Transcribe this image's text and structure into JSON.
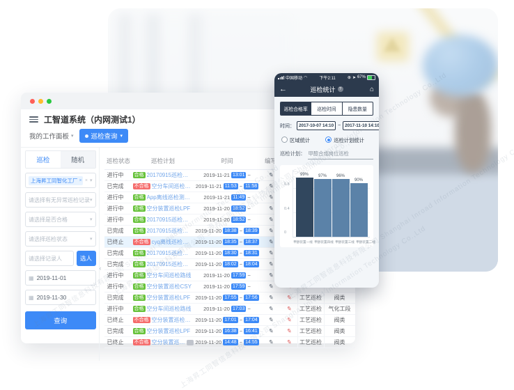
{
  "watermark": {
    "text": "上海昇工同智信息科技有限公司 Shanghai Inroad Information Technology Co.,Ltd"
  },
  "colors": {
    "accent": "#3d8af7",
    "ok": "#67c23a",
    "bad": "#f56c6c",
    "time_badge": "#3d8af7",
    "phone_dark": "#2c3a4d",
    "bar_main": "#31475e",
    "bar_rest": "#5b82a8"
  },
  "desktop": {
    "title": "工智道系统（内网测试1）",
    "workspace_tab": "我的工作面板",
    "active_tab": "巡检查询",
    "sidebar": {
      "tabs": [
        {
          "label": "巡检"
        },
        {
          "label": "随机"
        }
      ],
      "factory_tag": "上海昇工同智化工厂",
      "filters": [
        "请选择有无异常巡检记录",
        "请选择是否合格",
        "请选择巡检状态"
      ],
      "person_placeholder": "请选择记录人",
      "pick_person_button": "选人",
      "date_from": "2019-11-01",
      "date_to": "2019-11-30",
      "query_button": "查询"
    },
    "table": {
      "headers": [
        "巡检状态",
        "巡检计划",
        "时间",
        "编写"
      ],
      "rows": [
        {
          "status": "进行中",
          "result": "合格",
          "plan": "20170915巡检测试",
          "date": "2019-11-21",
          "start": "13:01",
          "end": "",
          "type": "",
          "area": "",
          "selected": false,
          "chip": false
        },
        {
          "status": "已完成",
          "result": "不合格",
          "plan": "空分车间巡检路线",
          "date": "2019-11-21",
          "start": "11:53",
          "end": "11:58",
          "type": "",
          "area": "",
          "selected": false,
          "chip": false
        },
        {
          "status": "进行中",
          "result": "合格",
          "plan": "App离线巡检测试计划",
          "date": "2019-11-21",
          "start": "11:49",
          "end": "",
          "type": "",
          "area": "",
          "selected": false,
          "chip": false
        },
        {
          "status": "进行中",
          "result": "合格",
          "plan": "空分装置巡检LPF",
          "date": "2019-11-20",
          "start": "18:52",
          "end": "",
          "type": "",
          "area": "",
          "selected": false,
          "chip": false
        },
        {
          "status": "进行中",
          "result": "合格",
          "plan": "20170915巡检测试",
          "date": "2019-11-20",
          "start": "18:52",
          "end": "",
          "type": "",
          "area": "",
          "selected": false,
          "chip": false
        },
        {
          "status": "已完成",
          "result": "合格",
          "plan": "20170915巡检测试",
          "date": "2019-11-20",
          "start": "18:38",
          "end": "18:39",
          "type": "",
          "area": "",
          "selected": false,
          "chip": false
        },
        {
          "status": "已终止",
          "result": "不合格",
          "plan": "cyq离线巡检测试计划",
          "date": "2019-11-20",
          "start": "18:35",
          "end": "18:37",
          "type": "",
          "area": "",
          "selected": true,
          "chip": false
        },
        {
          "status": "已完成",
          "result": "合格",
          "plan": "20170915巡检测试",
          "date": "2019-11-20",
          "start": "18:30",
          "end": "18:31",
          "type": "",
          "area": "",
          "selected": false,
          "chip": false
        },
        {
          "status": "已完成",
          "result": "合格",
          "plan": "20170915巡检测试",
          "date": "2019-11-20",
          "start": "18:02",
          "end": "18:04",
          "type": "",
          "area": "",
          "selected": false,
          "chip": false
        },
        {
          "status": "进行中",
          "result": "合格",
          "plan": "空分车间巡检路线",
          "date": "2019-11-20",
          "start": "17:59",
          "end": "",
          "type": "",
          "area": "",
          "selected": false,
          "chip": false
        },
        {
          "status": "进行中",
          "result": "合格",
          "plan": "空分装置巡检CSY",
          "date": "2019-11-20",
          "start": "17:59",
          "end": "",
          "type": "",
          "area": "",
          "selected": false,
          "chip": false
        },
        {
          "status": "已完成",
          "result": "合格",
          "plan": "空分装置巡检LPF",
          "date": "2019-11-20",
          "start": "17:55",
          "end": "17:56",
          "type": "工艺巡检",
          "area": "阀类",
          "selected": false,
          "chip": false
        },
        {
          "status": "进行中",
          "result": "合格",
          "plan": "空分车间巡检路线",
          "date": "2019-11-20",
          "start": "17:03",
          "end": "",
          "type": "工艺巡检",
          "area": "气化工段",
          "selected": false,
          "chip": false
        },
        {
          "status": "已终止",
          "result": "不合格",
          "plan": "空分装置巡检LPF",
          "date": "2019-11-20",
          "start": "17:01",
          "end": "17:04",
          "type": "工艺巡检",
          "area": "阀类",
          "selected": false,
          "chip": false
        },
        {
          "status": "已完成",
          "result": "合格",
          "plan": "空分装置巡检LPF",
          "date": "2019-11-20",
          "start": "16:38",
          "end": "16:41",
          "type": "工艺巡检",
          "area": "阀类",
          "selected": false,
          "chip": false
        },
        {
          "status": "已终止",
          "result": "不合格",
          "plan": "空分装置巡检LPF",
          "date": "2019-11-20",
          "start": "14:48",
          "end": "14:55",
          "type": "工艺巡检",
          "area": "阀类",
          "selected": false,
          "chip": true
        }
      ]
    }
  },
  "phone": {
    "status_bar": {
      "carrier": "中国移动",
      "time": "下午2:11",
      "battery": "67%"
    },
    "nav": {
      "back_icon": "←",
      "title": "巡检统计",
      "info_icon": "?",
      "home_icon": "⌂"
    },
    "tabs": [
      {
        "label": "巡检合格率"
      },
      {
        "label": "巡检时间"
      },
      {
        "label": "隐患数量"
      }
    ],
    "time_label": "时间：",
    "date_from": "2017-10-07 14:10",
    "range_sep": "~",
    "date_to": "2017-11-10 14:10",
    "radios": [
      {
        "label": "区域统计",
        "selected": false
      },
      {
        "label": "巡检计划统计",
        "selected": true
      }
    ],
    "plan_label": "巡检计划：",
    "plan_value": "甲醇合成岗位巡检"
  },
  "chart_data": {
    "type": "bar",
    "categories": [
      "甲醇装置一线",
      "甲醇装置四线",
      "甲醇装置三线",
      "甲醇装置二线"
    ],
    "values": [
      99,
      97,
      96,
      90
    ],
    "value_labels": [
      "99%",
      "97%",
      "96%",
      "90%"
    ],
    "title": "",
    "xlabel": "",
    "ylabel": "",
    "ylim": [
      0,
      1
    ],
    "yticks": [
      0.8,
      0.4,
      0
    ],
    "ytick_labels": [
      "0.8",
      "0.4",
      "0"
    ],
    "bar_colors": [
      "#31475e",
      "#5b82a8",
      "#5b82a8",
      "#5b82a8"
    ],
    "grid": true,
    "legend": "none"
  }
}
